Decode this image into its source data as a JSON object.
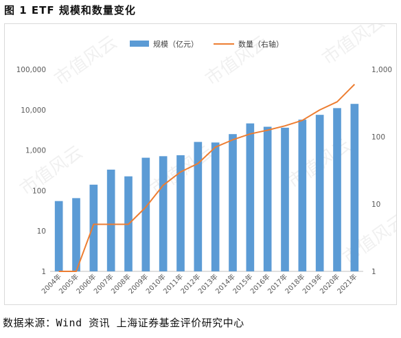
{
  "figure_title": "图 1 ETF 规模和数量变化",
  "source_note": "数据来源：Wind 资讯 上海证券基金评价研究中心",
  "watermark": "市值风云",
  "chart_data": {
    "type": "bar+line",
    "title": "",
    "x": [
      "2004年",
      "2005年",
      "2006年",
      "2007年",
      "2008年",
      "2009年",
      "2010年",
      "2011年",
      "2012年",
      "2013年",
      "2014年",
      "2015年",
      "2016年",
      "2017年",
      "2018年",
      "2019年",
      "2020年",
      "2021年"
    ],
    "series": [
      {
        "name": "规模（亿元）",
        "type": "bar",
        "axis": "left",
        "color": "#5b9bd5",
        "values": [
          55,
          65,
          140,
          330,
          225,
          650,
          710,
          750,
          1600,
          1550,
          2500,
          4600,
          3800,
          3600,
          5700,
          7500,
          11000,
          14000
        ]
      },
      {
        "name": "数量（右轴）",
        "type": "line",
        "axis": "right",
        "color": "#ed7d31",
        "values": [
          1,
          1,
          5,
          5,
          5,
          9,
          19,
          30,
          40,
          70,
          90,
          110,
          125,
          145,
          175,
          250,
          330,
          600
        ]
      }
    ],
    "y_left": {
      "scale": "log",
      "ticks": [
        "1",
        "10",
        "100",
        "1,000",
        "10,000",
        "100,000"
      ],
      "range": [
        1,
        100000
      ]
    },
    "y_right": {
      "scale": "log",
      "ticks": [
        "1",
        "10",
        "100",
        "1,000"
      ],
      "range": [
        1,
        1000
      ]
    },
    "legend": "top-center",
    "grid": false
  }
}
